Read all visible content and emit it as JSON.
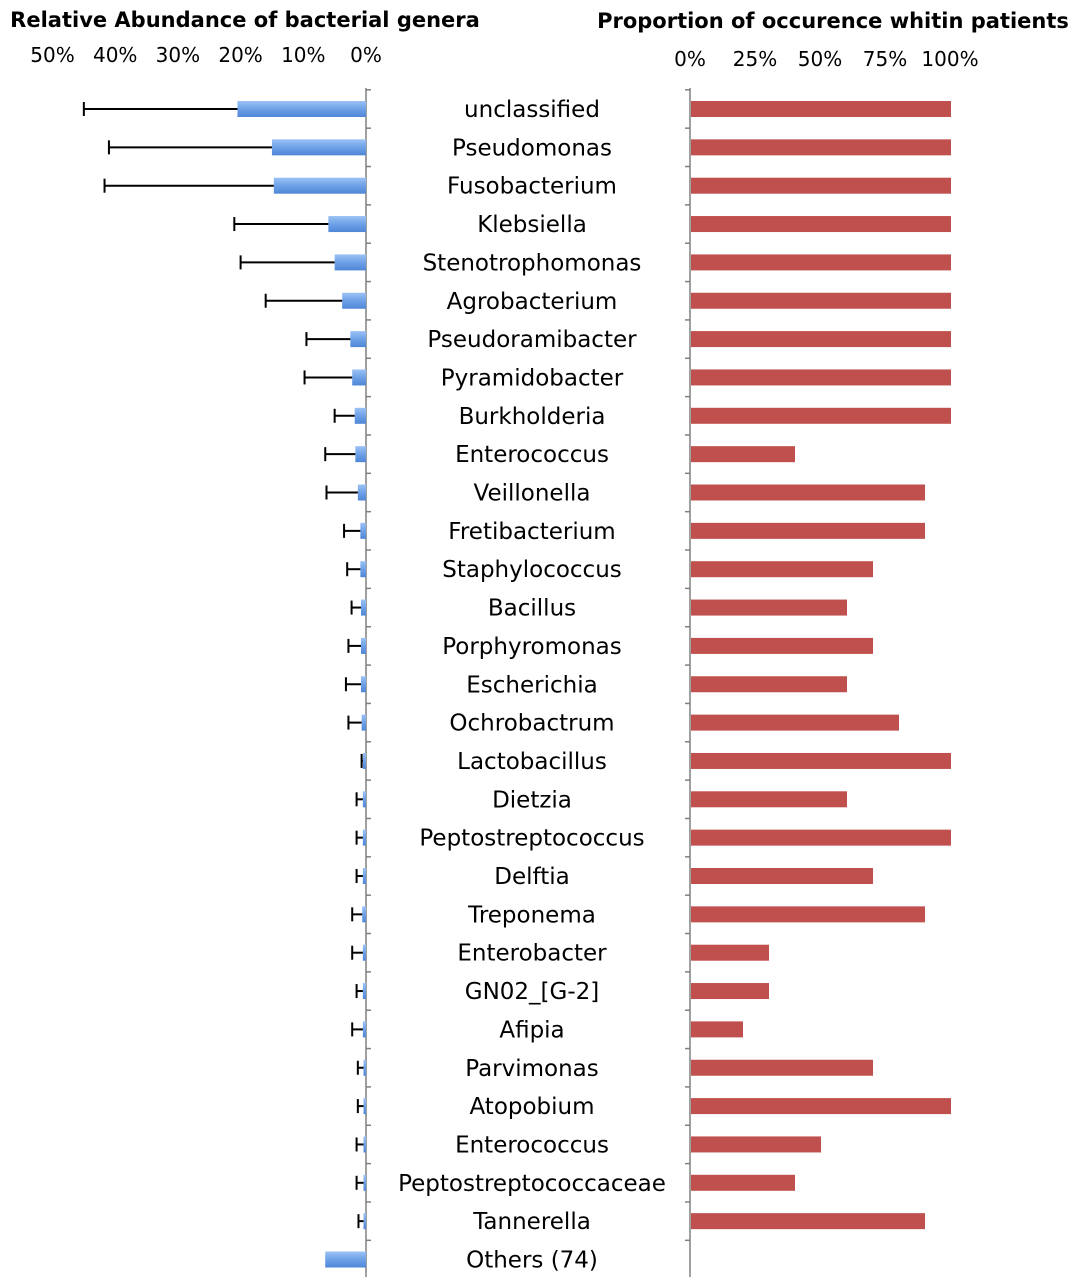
{
  "chart_data": [
    {
      "type": "bar",
      "orientation": "horizontal-reversed",
      "title": "Relative Abundance of bacterial genera",
      "xlim": [
        0,
        50
      ],
      "xticks": [
        "50%",
        "40%",
        "30%",
        "20%",
        "10%",
        "0%"
      ],
      "xtick_values": [
        50,
        40,
        30,
        20,
        10,
        0
      ],
      "categories": [
        "unclassified",
        "Pseudomonas",
        "Fusobacterium",
        "Klebsiella",
        "Stenotrophomonas",
        "Agrobacterium",
        "Pseudoramibacter",
        "Pyramidobacter",
        "Burkholderia",
        "Enterococcus",
        "Veillonella",
        "Fretibacterium",
        "Staphylococcus",
        "Bacillus",
        "Porphyromonas",
        "Escherichia",
        "Ochrobactrum",
        "Lactobacillus",
        "Dietzia",
        "Peptostreptococcus",
        "Delftia",
        "Treponema",
        "Enterobacter",
        "GN02_[G-2]",
        "Afipia",
        "Parvimonas",
        "Atopobium",
        "Enterococcus",
        "Peptostreptococcaceae",
        "Tannerella",
        "Others (74)"
      ],
      "values": [
        20.5,
        15.0,
        14.7,
        6.0,
        5.0,
        3.8,
        2.5,
        2.2,
        1.8,
        1.7,
        1.3,
        0.9,
        0.9,
        0.8,
        0.8,
        0.8,
        0.7,
        0.5,
        0.5,
        0.5,
        0.5,
        0.6,
        0.5,
        0.5,
        0.5,
        0.4,
        0.4,
        0.4,
        0.4,
        0.4,
        6.5
      ],
      "error_upper": [
        45.0,
        41.0,
        41.7,
        21.0,
        20.0,
        16.0,
        9.5,
        9.8,
        5.0,
        6.5,
        6.3,
        3.5,
        3.0,
        2.3,
        2.8,
        3.2,
        2.8,
        0.7,
        1.5,
        1.5,
        1.5,
        2.2,
        2.2,
        1.5,
        2.2,
        1.3,
        1.3,
        1.5,
        1.5,
        1.2,
        null
      ],
      "color": "#6a9ee6"
    },
    {
      "type": "bar",
      "orientation": "horizontal",
      "title": "Proportion of occurence whitin patients",
      "xlim": [
        0,
        100
      ],
      "xticks": [
        "0%",
        "25%",
        "50%",
        "75%",
        "100%"
      ],
      "xtick_values": [
        0,
        25,
        50,
        75,
        100
      ],
      "categories": [
        "unclassified",
        "Pseudomonas",
        "Fusobacterium",
        "Klebsiella",
        "Stenotrophomonas",
        "Agrobacterium",
        "Pseudoramibacter",
        "Pyramidobacter",
        "Burkholderia",
        "Enterococcus",
        "Veillonella",
        "Fretibacterium",
        "Staphylococcus",
        "Bacillus",
        "Porphyromonas",
        "Escherichia",
        "Ochrobactrum",
        "Lactobacillus",
        "Dietzia",
        "Peptostreptococcus",
        "Delftia",
        "Treponema",
        "Enterobacter",
        "GN02_[G-2]",
        "Afipia",
        "Parvimonas",
        "Atopobium",
        "Enterococcus",
        "Peptostreptococcaceae",
        "Tannerella",
        "Others (74)"
      ],
      "values": [
        100,
        100,
        100,
        100,
        100,
        100,
        100,
        100,
        100,
        40,
        90,
        90,
        70,
        60,
        70,
        60,
        80,
        100,
        60,
        100,
        70,
        90,
        30,
        30,
        20,
        70,
        100,
        50,
        40,
        90,
        null
      ],
      "color": "#c0504d"
    }
  ]
}
